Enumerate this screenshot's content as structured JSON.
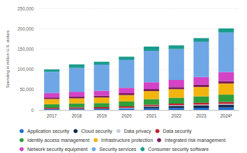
{
  "chart_data": {
    "type": "bar",
    "stacked": true,
    "grid": true,
    "legend": "bottom",
    "ylabel": "Spending in million U.S. dollars",
    "categories": [
      "2017",
      "2018",
      "2019",
      "2020",
      "2021",
      "2022",
      "2023",
      "2024*"
    ],
    "ylim": [
      0,
      250000
    ],
    "yticks": [
      0,
      {
        "value": 50000,
        "label": "50,000"
      },
      {
        "value": 100000,
        "label": "100,000"
      },
      {
        "value": 150000,
        "label": "150,000"
      },
      {
        "value": 200000,
        "label": "200,000"
      },
      {
        "value": 250000,
        "label": "250,000"
      }
    ],
    "series": [
      {
        "name": "Application security",
        "color": "#1f6fd0",
        "values": [
          2434,
          2742,
          3095,
          3333,
          3738,
          4500,
          5100,
          5900
        ]
      },
      {
        "name": "Cloud security",
        "color": "#142a4c",
        "values": [
          185,
          304,
          439,
          595,
          4323,
          5500,
          6200,
          7000
        ]
      },
      {
        "name": "Data privacy",
        "color": "#c3cfdf",
        "values": [
          0,
          0,
          0,
          1200,
          1300,
          1500,
          1700,
          1900
        ]
      },
      {
        "name": "Data security",
        "color": "#c21f30",
        "values": [
          2563,
          3063,
          3460,
          3573,
          3505,
          3900,
          4300,
          4700
        ]
      },
      {
        "name": "Identity access management",
        "color": "#2f9e3c",
        "values": [
          8823,
          9768,
          9837,
          11800,
          13500,
          14500,
          16000,
          18000
        ]
      },
      {
        "name": "Infrastructure protection",
        "color": "#f2b50f",
        "values": [
          12583,
          12462,
          13387,
          15800,
          20000,
          21000,
          23000,
          27500
        ]
      },
      {
        "name": "Integrated risk management",
        "color": "#7a1f5e",
        "values": [
          3949,
          4347,
          4555,
          4600,
          4850,
          5300,
          5600,
          6000
        ]
      },
      {
        "name": "Network security equipment",
        "color": "#d443c6",
        "values": [
          10907,
          11669,
          12245,
          13500,
          17000,
          17500,
          19000,
          22000
        ]
      },
      {
        "name": "Security services",
        "color": "#6fa6e6",
        "values": [
          52315,
          58920,
          64270,
          69000,
          77500,
          76000,
          87000,
          97500
        ]
      },
      {
        "name": "Consumer security software",
        "color": "#1a9c8c",
        "values": [
          5952,
          8797,
          7440,
          7704,
          10266,
          8998.1,
          8849.5,
          10090.8
        ]
      }
    ],
    "totals": [
      99711,
      112072,
      118728,
      131105,
      155982,
      158698.1,
      176749.5,
      200590.8
    ],
    "total_labels": [
      "99,711",
      "112,072",
      "118,728",
      "131,105",
      "155,982",
      "158,698.1",
      "176,749.5",
      "200,590.8"
    ]
  }
}
